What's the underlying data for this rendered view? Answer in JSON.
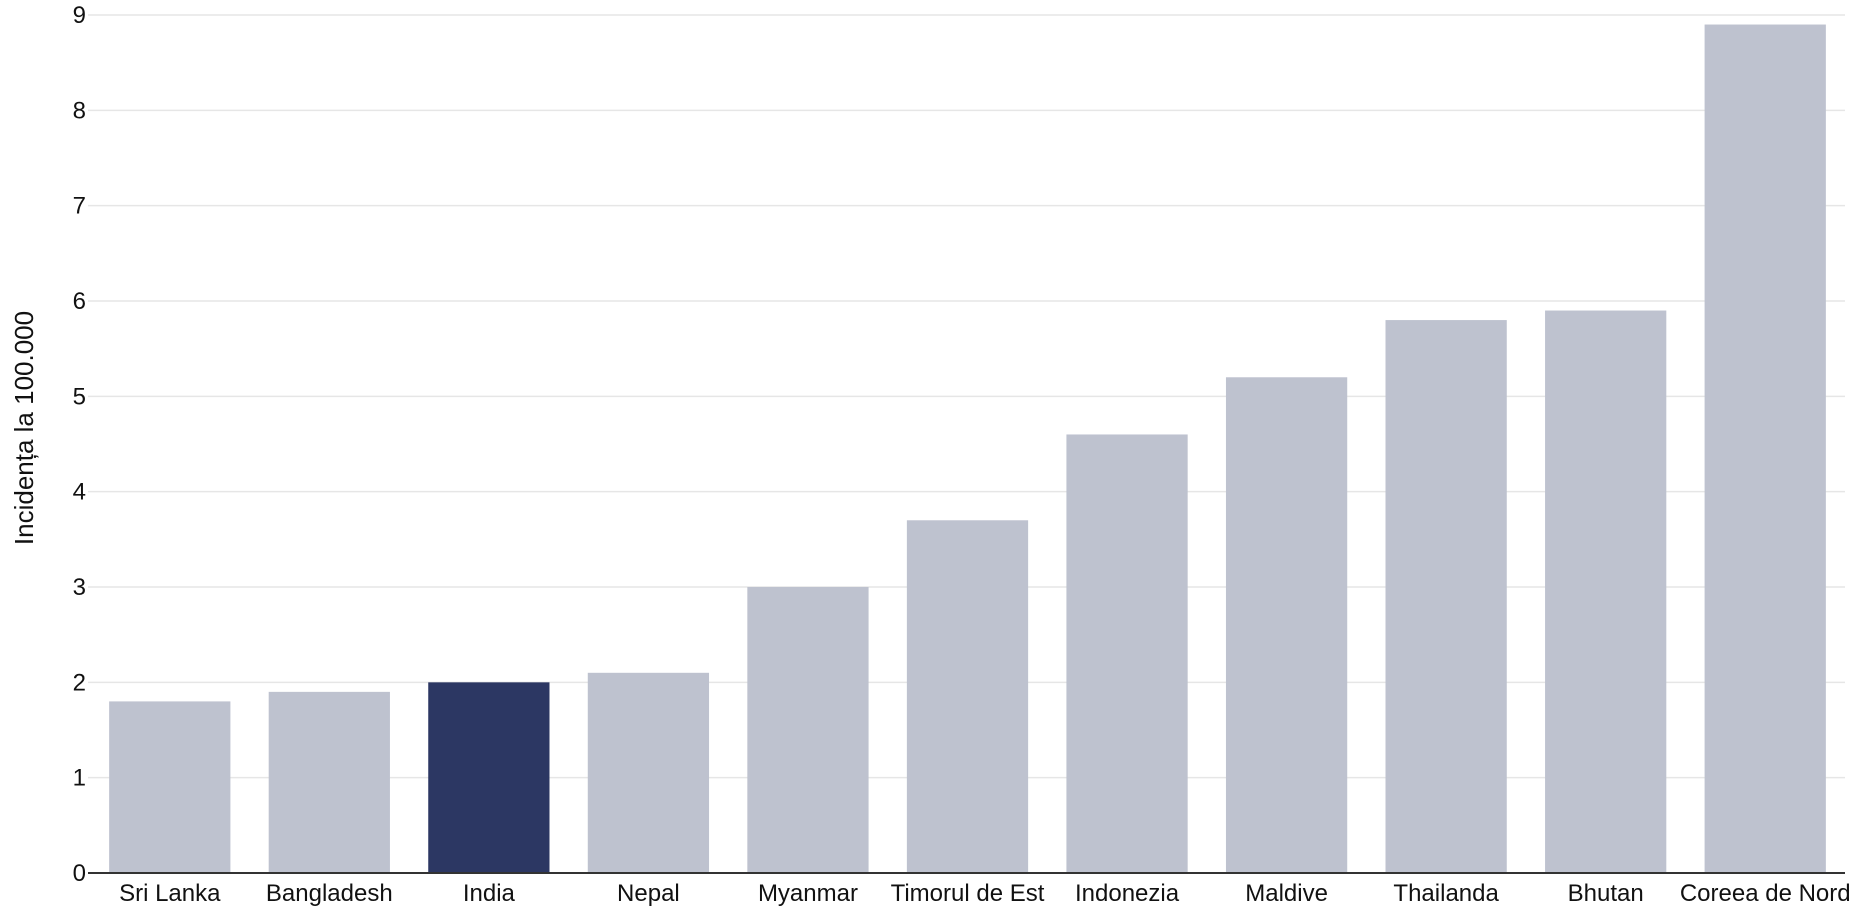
{
  "chart_data": {
    "type": "bar",
    "title": "",
    "xlabel": "",
    "ylabel": "Incidența la 100.000",
    "categories": [
      "Sri Lanka",
      "Bangladesh",
      "India",
      "Nepal",
      "Myanmar",
      "Timorul de Est",
      "Indonezia",
      "Maldive",
      "Thailanda",
      "Bhutan",
      "Coreea de Nord"
    ],
    "values": [
      1.8,
      1.9,
      2.0,
      2.1,
      3.0,
      3.7,
      4.6,
      5.2,
      5.8,
      5.9,
      8.9
    ],
    "highlight_index": 2,
    "ylim": [
      0,
      9
    ],
    "yticks": [
      "0",
      "1",
      "2",
      "3",
      "4",
      "5",
      "6",
      "7",
      "8",
      "9"
    ],
    "grid": true,
    "legend": "none",
    "colors": {
      "bar": "#bec2cf",
      "highlight": "#2c3763",
      "grid": "#e6e6e6",
      "axis": "#333333",
      "text": "#111111"
    }
  }
}
